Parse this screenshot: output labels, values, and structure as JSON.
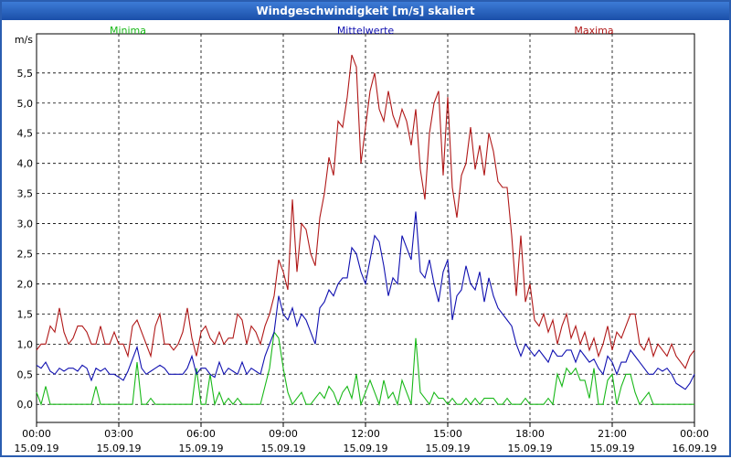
{
  "chart_data": {
    "type": "line",
    "title": "Windgeschwindigkeit [m/s] skaliert",
    "y_label": "m/s",
    "x": [
      0,
      10,
      20,
      30,
      40,
      50,
      60,
      70,
      80,
      90,
      100,
      110,
      120,
      130,
      140,
      150,
      160,
      170,
      180,
      190,
      200,
      210,
      220,
      230,
      240,
      250,
      260,
      270,
      280,
      290,
      300,
      310,
      320,
      330,
      340,
      350,
      360,
      370,
      380,
      390,
      400,
      410,
      420,
      430,
      440,
      450,
      460,
      470,
      480,
      490,
      500,
      510,
      520,
      530,
      540,
      550,
      560,
      570,
      580,
      590,
      600,
      610,
      620,
      630,
      640,
      650,
      660,
      670,
      680,
      690,
      700,
      710,
      720,
      730,
      740,
      750,
      760,
      770,
      780,
      790,
      800,
      810,
      820,
      830,
      840,
      850,
      860,
      870,
      880,
      890,
      900,
      910,
      920,
      930,
      940,
      950,
      960,
      970,
      980,
      990,
      1000,
      1010,
      1020,
      1030,
      1040,
      1050,
      1060,
      1070,
      1080,
      1090,
      1100,
      1110,
      1120,
      1130,
      1140,
      1150,
      1160,
      1170,
      1180,
      1190,
      1200,
      1210,
      1220,
      1230,
      1240,
      1250,
      1260,
      1270,
      1280,
      1290,
      1300,
      1310,
      1320,
      1330,
      1340,
      1350,
      1360,
      1370,
      1380,
      1390,
      1400,
      1410,
      1420,
      1430,
      1440
    ],
    "xlim": [
      0,
      1440
    ],
    "xticks": [
      {
        "value": 0,
        "label": "00:00\n15.09.19"
      },
      {
        "value": 180,
        "label": "03:00\n15.09.19"
      },
      {
        "value": 360,
        "label": "06:00\n15.09.19"
      },
      {
        "value": 540,
        "label": "09:00\n15.09.19"
      },
      {
        "value": 720,
        "label": "12:00\n15.09.19"
      },
      {
        "value": 900,
        "label": "15:00\n15.09.19"
      },
      {
        "value": 1080,
        "label": "18:00\n15.09.19"
      },
      {
        "value": 1260,
        "label": "21:00\n15.09.19"
      },
      {
        "value": 1440,
        "label": "00:00\n16.09.19"
      }
    ],
    "ylim": [
      -0.3,
      6.15
    ],
    "yticks": [
      {
        "value": 0,
        "label": "0,0"
      },
      {
        "value": 0.5,
        "label": "0,5"
      },
      {
        "value": 1,
        "label": "1,0"
      },
      {
        "value": 1.5,
        "label": "1,5"
      },
      {
        "value": 2,
        "label": "2,0"
      },
      {
        "value": 2.5,
        "label": "2,5"
      },
      {
        "value": 3,
        "label": "3,0"
      },
      {
        "value": 3.5,
        "label": "3,5"
      },
      {
        "value": 4,
        "label": "4,0"
      },
      {
        "value": 4.5,
        "label": "4,5"
      },
      {
        "value": 5,
        "label": "5,0"
      },
      {
        "value": 5.5,
        "label": "5,5"
      }
    ],
    "grid": true,
    "series": [
      {
        "name": "Minima",
        "color": "#18b818",
        "values": [
          0.2,
          0.0,
          0.3,
          0.0,
          0.0,
          0.0,
          0.0,
          0.0,
          0.0,
          0.0,
          0.0,
          0.0,
          0.0,
          0.3,
          0.0,
          0.0,
          0.0,
          0.0,
          0.0,
          0.0,
          0.0,
          0.0,
          0.7,
          0.0,
          0.0,
          0.1,
          0.0,
          0.0,
          0.0,
          0.0,
          0.0,
          0.0,
          0.0,
          0.0,
          0.0,
          0.6,
          0.0,
          0.0,
          0.5,
          0.0,
          0.2,
          0.0,
          0.1,
          0.0,
          0.1,
          0.0,
          0.0,
          0.0,
          0.0,
          0.0,
          0.3,
          0.6,
          1.2,
          1.1,
          0.6,
          0.2,
          0.0,
          0.1,
          0.2,
          0.0,
          0.0,
          0.1,
          0.2,
          0.1,
          0.3,
          0.2,
          0.0,
          0.2,
          0.3,
          0.1,
          0.5,
          0.0,
          0.2,
          0.4,
          0.2,
          0.0,
          0.4,
          0.1,
          0.2,
          0.0,
          0.4,
          0.2,
          0.0,
          1.1,
          0.2,
          0.1,
          0.0,
          0.2,
          0.1,
          0.1,
          0.0,
          0.1,
          0.0,
          0.0,
          0.1,
          0.0,
          0.1,
          0.0,
          0.1,
          0.1,
          0.1,
          0.0,
          0.0,
          0.1,
          0.0,
          0.0,
          0.0,
          0.1,
          0.0,
          0.0,
          0.0,
          0.0,
          0.1,
          0.0,
          0.5,
          0.3,
          0.6,
          0.5,
          0.6,
          0.4,
          0.4,
          0.1,
          0.6,
          0.0,
          0.0,
          0.4,
          0.5,
          0.0,
          0.3,
          0.5,
          0.5,
          0.2,
          0.0,
          0.1,
          0.2,
          0.0,
          0.0,
          0.0,
          0.0,
          0.0,
          0.0,
          0.0,
          0.0,
          0.0,
          0.0
        ]
      },
      {
        "name": "Mittelwerte",
        "color": "#1010b0",
        "values": [
          0.65,
          0.6,
          0.7,
          0.55,
          0.5,
          0.6,
          0.55,
          0.6,
          0.6,
          0.55,
          0.65,
          0.6,
          0.4,
          0.6,
          0.55,
          0.6,
          0.5,
          0.5,
          0.45,
          0.4,
          0.55,
          0.75,
          0.95,
          0.6,
          0.5,
          0.55,
          0.6,
          0.65,
          0.6,
          0.5,
          0.5,
          0.5,
          0.5,
          0.6,
          0.8,
          0.5,
          0.6,
          0.6,
          0.5,
          0.45,
          0.7,
          0.5,
          0.6,
          0.55,
          0.5,
          0.7,
          0.5,
          0.6,
          0.55,
          0.5,
          0.8,
          1.0,
          1.2,
          1.8,
          1.5,
          1.4,
          1.6,
          1.3,
          1.5,
          1.4,
          1.2,
          1.0,
          1.6,
          1.7,
          1.9,
          1.8,
          2.0,
          2.1,
          2.1,
          2.6,
          2.5,
          2.2,
          2.0,
          2.4,
          2.8,
          2.7,
          2.3,
          1.8,
          2.1,
          2.0,
          2.8,
          2.6,
          2.4,
          3.2,
          2.2,
          2.1,
          2.4,
          2.0,
          1.7,
          2.2,
          2.4,
          1.4,
          1.8,
          1.9,
          2.3,
          2.0,
          1.9,
          2.2,
          1.7,
          2.1,
          1.8,
          1.6,
          1.5,
          1.4,
          1.3,
          1.0,
          0.8,
          1.0,
          0.9,
          0.8,
          0.9,
          0.8,
          0.7,
          0.9,
          0.8,
          0.8,
          0.9,
          0.9,
          0.7,
          0.9,
          0.8,
          0.7,
          0.75,
          0.6,
          0.5,
          0.8,
          0.7,
          0.5,
          0.7,
          0.7,
          0.9,
          0.8,
          0.7,
          0.6,
          0.5,
          0.5,
          0.6,
          0.55,
          0.6,
          0.5,
          0.35,
          0.3,
          0.25,
          0.35,
          0.5
        ]
      },
      {
        "name": "Maxima",
        "color": "#b01818",
        "values": [
          0.9,
          1.0,
          1.0,
          1.3,
          1.2,
          1.6,
          1.2,
          1.0,
          1.1,
          1.3,
          1.3,
          1.2,
          1.0,
          1.0,
          1.3,
          1.0,
          1.0,
          1.2,
          1.0,
          1.0,
          0.8,
          1.3,
          1.4,
          1.2,
          1.0,
          0.8,
          1.3,
          1.5,
          1.0,
          1.0,
          0.9,
          1.0,
          1.2,
          1.6,
          1.1,
          0.8,
          1.2,
          1.3,
          1.1,
          1.0,
          1.2,
          1.0,
          1.1,
          1.1,
          1.5,
          1.4,
          1.0,
          1.3,
          1.2,
          1.0,
          1.3,
          1.5,
          1.8,
          2.4,
          2.2,
          1.9,
          3.4,
          2.2,
          3.0,
          2.9,
          2.5,
          2.3,
          3.1,
          3.5,
          4.1,
          3.8,
          4.7,
          4.6,
          5.1,
          5.8,
          5.6,
          4.0,
          4.6,
          5.2,
          5.5,
          4.9,
          4.7,
          5.2,
          4.8,
          4.6,
          4.9,
          4.7,
          4.3,
          4.9,
          3.9,
          3.4,
          4.5,
          5.0,
          5.2,
          3.8,
          5.1,
          3.6,
          3.1,
          3.8,
          4.0,
          4.6,
          3.9,
          4.3,
          3.8,
          4.5,
          4.2,
          3.7,
          3.6,
          3.6,
          2.8,
          1.8,
          2.8,
          1.7,
          2.0,
          1.4,
          1.3,
          1.5,
          1.2,
          1.4,
          1.0,
          1.3,
          1.5,
          1.1,
          1.3,
          1.0,
          1.2,
          0.9,
          1.1,
          0.8,
          1.0,
          1.3,
          0.9,
          1.2,
          1.1,
          1.3,
          1.5,
          1.5,
          1.0,
          0.9,
          1.1,
          0.8,
          1.0,
          0.9,
          0.8,
          1.0,
          0.8,
          0.7,
          0.6,
          0.8,
          0.9
        ]
      }
    ]
  }
}
